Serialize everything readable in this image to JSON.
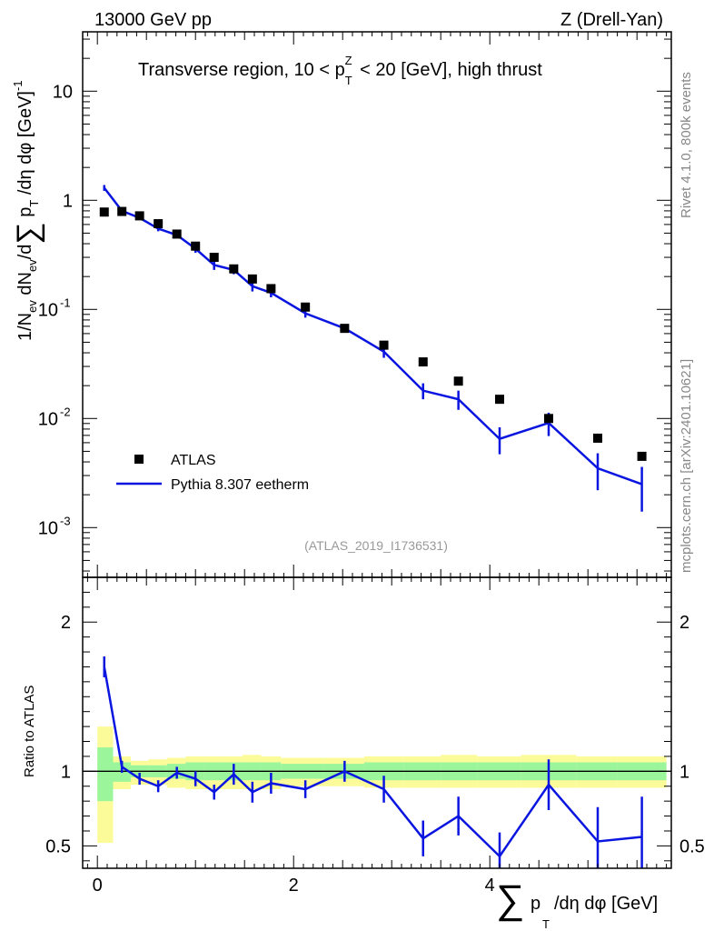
{
  "header": {
    "left": "13000 GeV pp",
    "right": "Z (Drell-Yan)"
  },
  "side_labels": {
    "rivet": "Rivet 4.1.0,  800k events",
    "mcplots": "mcplots.cern.ch [arXiv:2401.10621]"
  },
  "chart_data": [
    {
      "type": "scatter",
      "panel": "main",
      "title": "Transverse region, 10 < p_T^Z < 20 [GeV], high thrust",
      "ylabel": "1/N_ev dN_ev/d Σ p_T /dη dφ [GeV]^-1",
      "yscale": "log",
      "ylim": [
        0.00035,
        35
      ],
      "xlim": [
        -0.15,
        5.85
      ],
      "x_ticks": [
        0,
        2,
        4
      ],
      "y_ticks": [
        0.001,
        0.01,
        0.1,
        1,
        10
      ],
      "y_tick_labels": {
        "base": "10",
        "exponents": [
          "-3",
          "-2",
          "-1"
        ],
        "plain": [
          "1",
          "10"
        ]
      },
      "analysis_id": "(ATLAS_2019_I1736531)",
      "legend": [
        "ATLAS",
        "Pythia 8.307 eetherm"
      ],
      "series": [
        {
          "name": "ATLAS",
          "style": "markers",
          "x": [
            0.07,
            0.25,
            0.43,
            0.62,
            0.81,
            1.0,
            1.19,
            1.39,
            1.58,
            1.77,
            2.12,
            2.52,
            2.92,
            3.32,
            3.68,
            4.1,
            4.6,
            5.1,
            5.55
          ],
          "y": [
            0.78,
            0.79,
            0.72,
            0.61,
            0.49,
            0.38,
            0.3,
            0.235,
            0.19,
            0.155,
            0.105,
            0.067,
            0.047,
            0.033,
            0.022,
            0.015,
            0.01,
            0.0066,
            0.0045
          ]
        },
        {
          "name": "Pythia 8.307 eetherm",
          "style": "line",
          "color": "#0a16e0",
          "x": [
            0.07,
            0.25,
            0.43,
            0.62,
            0.81,
            1.0,
            1.19,
            1.39,
            1.58,
            1.77,
            2.12,
            2.52,
            2.92,
            3.32,
            3.68,
            4.1,
            4.6,
            5.1,
            5.55
          ],
          "y": [
            1.3,
            0.8,
            0.69,
            0.55,
            0.48,
            0.36,
            0.255,
            0.23,
            0.163,
            0.142,
            0.092,
            0.067,
            0.041,
            0.018,
            0.015,
            0.0065,
            0.0091,
            0.0035,
            0.0025
          ],
          "y_err": [
            0.08,
            0.025,
            0.03,
            0.03,
            0.025,
            0.03,
            0.025,
            0.02,
            0.017,
            0.013,
            0.008,
            0.005,
            0.005,
            0.003,
            0.003,
            0.0018,
            0.0022,
            0.0013,
            0.0011
          ]
        }
      ]
    },
    {
      "type": "line",
      "panel": "ratio",
      "ylabel": "Ratio to ATLAS",
      "xlabel": "Σ p_T /dη dφ [GeV]",
      "ylim": [
        0.35,
        2.3
      ],
      "xlim": [
        -0.15,
        5.85
      ],
      "x_ticks": [
        0,
        2,
        4
      ],
      "y_ticks": [
        0.5,
        1,
        2
      ],
      "bins": [
        0,
        0.16,
        0.34,
        0.52,
        0.71,
        0.9,
        1.09,
        1.29,
        1.48,
        1.67,
        1.87,
        2.3,
        2.72,
        3.12,
        3.5,
        3.87,
        4.32,
        4.88,
        5.3,
        5.8
      ],
      "band_inner_lo": [
        0.8,
        0.93,
        0.96,
        0.96,
        0.95,
        0.94,
        0.94,
        0.94,
        0.94,
        0.94,
        0.95,
        0.95,
        0.94,
        0.94,
        0.94,
        0.94,
        0.94,
        0.94,
        0.94
      ],
      "band_inner_hi": [
        1.16,
        1.06,
        1.04,
        1.04,
        1.05,
        1.06,
        1.06,
        1.06,
        1.06,
        1.06,
        1.05,
        1.05,
        1.06,
        1.06,
        1.06,
        1.06,
        1.06,
        1.06,
        1.06
      ],
      "band_outer_lo": [
        0.52,
        0.88,
        0.91,
        0.91,
        0.89,
        0.88,
        0.88,
        0.88,
        0.88,
        0.88,
        0.9,
        0.9,
        0.89,
        0.89,
        0.89,
        0.89,
        0.89,
        0.89,
        0.89
      ],
      "band_outer_hi": [
        1.3,
        1.1,
        1.07,
        1.08,
        1.09,
        1.1,
        1.1,
        1.1,
        1.11,
        1.1,
        1.09,
        1.09,
        1.1,
        1.1,
        1.11,
        1.1,
        1.11,
        1.1,
        1.1
      ],
      "series": [
        {
          "name": "Pythia 8.307 eetherm / ATLAS",
          "color": "#0a16e0",
          "x": [
            0.07,
            0.25,
            0.43,
            0.62,
            0.81,
            1.0,
            1.19,
            1.39,
            1.58,
            1.77,
            2.12,
            2.52,
            2.92,
            3.32,
            3.68,
            4.1,
            4.6,
            5.1,
            5.55
          ],
          "y": [
            1.7,
            1.03,
            0.95,
            0.9,
            0.99,
            0.95,
            0.86,
            0.98,
            0.86,
            0.92,
            0.88,
            1.0,
            0.88,
            0.55,
            0.7,
            0.43,
            0.91,
            0.53,
            0.56
          ],
          "y_err": [
            0.07,
            0.04,
            0.04,
            0.04,
            0.04,
            0.05,
            0.05,
            0.07,
            0.07,
            0.07,
            0.06,
            0.07,
            0.09,
            0.12,
            0.13,
            0.16,
            0.17,
            0.23,
            0.27
          ]
        }
      ]
    }
  ]
}
